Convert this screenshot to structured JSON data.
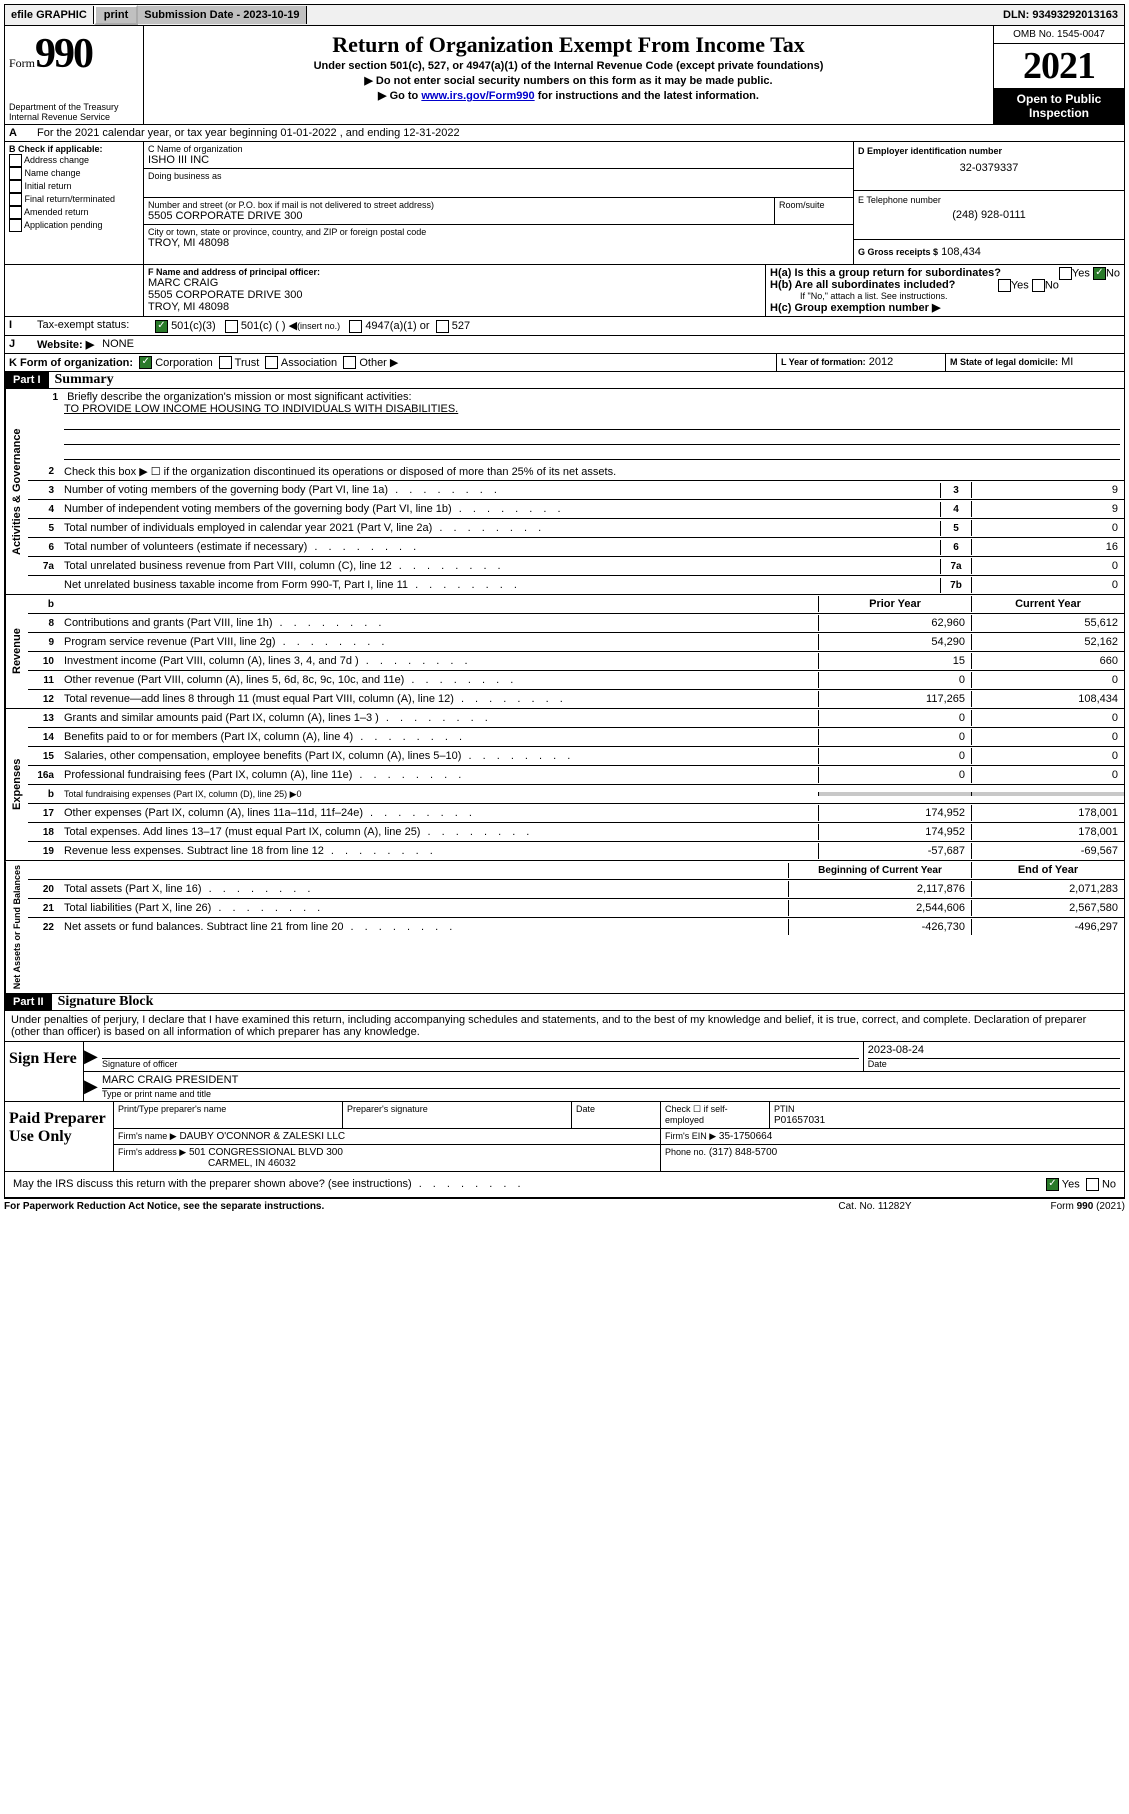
{
  "topbar": {
    "efile": "efile GRAPHIC",
    "print": "print",
    "subdate_label": "Submission Date - 2023-10-19",
    "dln": "DLN: 93493292013163"
  },
  "header": {
    "form_word": "Form",
    "form_num": "990",
    "dept": "Department of the Treasury",
    "irs": "Internal Revenue Service",
    "title": "Return of Organization Exempt From Income Tax",
    "sub1": "Under section 501(c), 527, or 4947(a)(1) of the Internal Revenue Code (except private foundations)",
    "sub2": "Do not enter social security numbers on this form as it may be made public.",
    "sub3_pre": "Go to ",
    "sub3_link": "www.irs.gov/Form990",
    "sub3_post": " for instructions and the latest information.",
    "omb": "OMB No. 1545-0047",
    "year": "2021",
    "open": "Open to Public Inspection"
  },
  "lineA": "For the 2021 calendar year, or tax year beginning 01-01-2022   , and ending 12-31-2022",
  "boxB": {
    "label": "B Check if applicable:",
    "opts": [
      "Address change",
      "Name change",
      "Initial return",
      "Final return/terminated",
      "Amended return",
      "Application pending"
    ]
  },
  "boxC": {
    "label": "C Name of organization",
    "name": "ISHO III INC",
    "dba": "Doing business as",
    "addr_label": "Number and street (or P.O. box if mail is not delivered to street address)",
    "room": "Room/suite",
    "addr": "5505 CORPORATE DRIVE 300",
    "city_label": "City or town, state or province, country, and ZIP or foreign postal code",
    "city": "TROY, MI  48098"
  },
  "boxD": {
    "label": "D Employer identification number",
    "val": "32-0379337"
  },
  "boxE": {
    "label": "E Telephone number",
    "val": "(248) 928-0111"
  },
  "boxG": {
    "label": "G Gross receipts $",
    "val": "108,434"
  },
  "boxF": {
    "label": "F Name and address of principal officer:",
    "name": "MARC CRAIG",
    "addr": "5505 CORPORATE DRIVE 300",
    "city": "TROY, MI  48098"
  },
  "boxH": {
    "a": "H(a)  Is this a group return for subordinates?",
    "b": "H(b)  Are all subordinates included?",
    "note": "If \"No,\" attach a list. See instructions.",
    "c": "H(c)  Group exemption number ▶",
    "yes": "Yes",
    "no": "No"
  },
  "boxI": {
    "label": "Tax-exempt status:",
    "o1": "501(c)(3)",
    "o2": "501(c) (  )",
    "o2b": "(insert no.)",
    "o3": "4947(a)(1) or",
    "o4": "527"
  },
  "boxJ": {
    "label": "Website: ▶",
    "val": "NONE"
  },
  "boxK": {
    "label": "K Form of organization:",
    "opts": [
      "Corporation",
      "Trust",
      "Association",
      "Other ▶"
    ]
  },
  "boxL": {
    "label": "L Year of formation:",
    "val": "2012"
  },
  "boxM": {
    "label": "M State of legal domicile:",
    "val": "MI"
  },
  "part1": {
    "tag": "Part I",
    "title": "Summary"
  },
  "summary": {
    "l1_label": "Briefly describe the organization's mission or most significant activities:",
    "l1_text": "TO PROVIDE LOW INCOME HOUSING TO INDIVIDUALS WITH DISABILITIES.",
    "l2": "Check this box ▶ ☐  if the organization discontinued its operations or disposed of more than 25% of its net assets.",
    "prior": "Prior Year",
    "current": "Current Year",
    "rows_gov": [
      {
        "n": "3",
        "d": "Number of voting members of the governing body (Part VI, line 1a)",
        "box": "3",
        "v": "9"
      },
      {
        "n": "4",
        "d": "Number of independent voting members of the governing body (Part VI, line 1b)",
        "box": "4",
        "v": "9"
      },
      {
        "n": "5",
        "d": "Total number of individuals employed in calendar year 2021 (Part V, line 2a)",
        "box": "5",
        "v": "0"
      },
      {
        "n": "6",
        "d": "Total number of volunteers (estimate if necessary)",
        "box": "6",
        "v": "16"
      },
      {
        "n": "7a",
        "d": "Total unrelated business revenue from Part VIII, column (C), line 12",
        "box": "7a",
        "v": "0"
      },
      {
        "n": "",
        "d": "Net unrelated business taxable income from Form 990-T, Part I, line 11",
        "box": "7b",
        "v": "0"
      }
    ],
    "rows_rev": [
      {
        "n": "8",
        "d": "Contributions and grants (Part VIII, line 1h)",
        "p": "62,960",
        "c": "55,612"
      },
      {
        "n": "9",
        "d": "Program service revenue (Part VIII, line 2g)",
        "p": "54,290",
        "c": "52,162"
      },
      {
        "n": "10",
        "d": "Investment income (Part VIII, column (A), lines 3, 4, and 7d )",
        "p": "15",
        "c": "660"
      },
      {
        "n": "11",
        "d": "Other revenue (Part VIII, column (A), lines 5, 6d, 8c, 9c, 10c, and 11e)",
        "p": "0",
        "c": "0"
      },
      {
        "n": "12",
        "d": "Total revenue—add lines 8 through 11 (must equal Part VIII, column (A), line 12)",
        "p": "117,265",
        "c": "108,434"
      }
    ],
    "rows_exp": [
      {
        "n": "13",
        "d": "Grants and similar amounts paid (Part IX, column (A), lines 1–3 )",
        "p": "0",
        "c": "0"
      },
      {
        "n": "14",
        "d": "Benefits paid to or for members (Part IX, column (A), line 4)",
        "p": "0",
        "c": "0"
      },
      {
        "n": "15",
        "d": "Salaries, other compensation, employee benefits (Part IX, column (A), lines 5–10)",
        "p": "0",
        "c": "0"
      },
      {
        "n": "16a",
        "d": "Professional fundraising fees (Part IX, column (A), line 11e)",
        "p": "0",
        "c": "0"
      },
      {
        "n": "b",
        "d": "Total fundraising expenses (Part IX, column (D), line 25) ▶0",
        "shaded": true
      },
      {
        "n": "17",
        "d": "Other expenses (Part IX, column (A), lines 11a–11d, 11f–24e)",
        "p": "174,952",
        "c": "178,001"
      },
      {
        "n": "18",
        "d": "Total expenses. Add lines 13–17 (must equal Part IX, column (A), line 25)",
        "p": "174,952",
        "c": "178,001"
      },
      {
        "n": "19",
        "d": "Revenue less expenses. Subtract line 18 from line 12",
        "p": "-57,687",
        "c": "-69,567"
      }
    ],
    "na_header_p": "Beginning of Current Year",
    "na_header_c": "End of Year",
    "rows_na": [
      {
        "n": "20",
        "d": "Total assets (Part X, line 16)",
        "p": "2,117,876",
        "c": "2,071,283"
      },
      {
        "n": "21",
        "d": "Total liabilities (Part X, line 26)",
        "p": "2,544,606",
        "c": "2,567,580"
      },
      {
        "n": "22",
        "d": "Net assets or fund balances. Subtract line 21 from line 20",
        "p": "-426,730",
        "c": "-496,297"
      }
    ]
  },
  "vlabels": {
    "gov": "Activities & Governance",
    "rev": "Revenue",
    "exp": "Expenses",
    "na": "Net Assets or Fund Balances"
  },
  "part2": {
    "tag": "Part II",
    "title": "Signature Block"
  },
  "perjury": "Under penalties of perjury, I declare that I have examined this return, including accompanying schedules and statements, and to the best of my knowledge and belief, it is true, correct, and complete. Declaration of preparer (other than officer) is based on all information of which preparer has any knowledge.",
  "sign": {
    "here": "Sign Here",
    "sig_label": "Signature of officer",
    "date_label": "Date",
    "date": "2023-08-24",
    "name": "MARC CRAIG  PRESIDENT",
    "name_label": "Type or print name and title"
  },
  "paid": {
    "label": "Paid Preparer Use Only",
    "h1": "Print/Type preparer's name",
    "h2": "Preparer's signature",
    "h3": "Date",
    "h4": "Check ☐ if self-employed",
    "h5": "PTIN",
    "ptin": "P01657031",
    "firm_label": "Firm's name    ▶",
    "firm": "DAUBY O'CONNOR & ZALESKI LLC",
    "ein_label": "Firm's EIN ▶",
    "ein": "35-1750664",
    "addr_label": "Firm's address ▶",
    "addr1": "501 CONGRESSIONAL BLVD 300",
    "addr2": "CARMEL, IN  46032",
    "phone_label": "Phone no.",
    "phone": "(317) 848-5700"
  },
  "discuss": "May the IRS discuss this return with the preparer shown above? (see instructions)",
  "footer": {
    "left": "For Paperwork Reduction Act Notice, see the separate instructions.",
    "mid": "Cat. No. 11282Y",
    "right_pre": "Form ",
    "right_b": "990",
    "right_post": " (2021)"
  }
}
